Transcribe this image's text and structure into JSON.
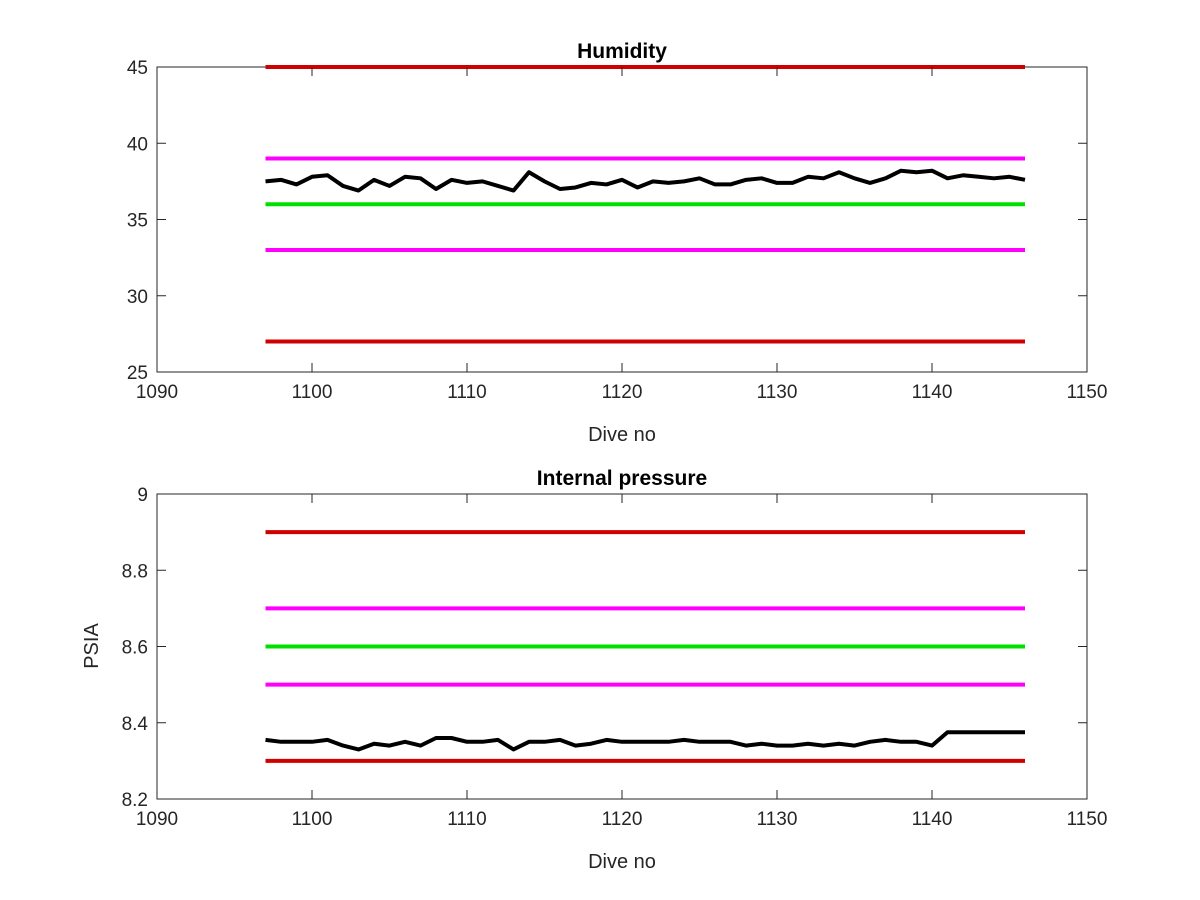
{
  "chart_data": [
    {
      "type": "line",
      "title": "Humidity",
      "xlabel": "Dive no",
      "ylabel": "",
      "xlim": [
        1090,
        1150
      ],
      "ylim": [
        25,
        45
      ],
      "xticks": [
        "1090",
        "1100",
        "1110",
        "1120",
        "1130",
        "1140",
        "1150"
      ],
      "yticks": [
        "25",
        "30",
        "35",
        "40",
        "45"
      ],
      "grid": false,
      "series": [
        {
          "color": "#d00000",
          "kind": "limit",
          "x": [
            1097,
            1146
          ],
          "y": [
            45,
            45
          ]
        },
        {
          "color": "#ff00ff",
          "kind": "limit",
          "x": [
            1097,
            1146
          ],
          "y": [
            39,
            39
          ]
        },
        {
          "color": "#00e000",
          "kind": "limit",
          "x": [
            1097,
            1146
          ],
          "y": [
            36,
            36
          ]
        },
        {
          "color": "#ff00ff",
          "kind": "limit",
          "x": [
            1097,
            1146
          ],
          "y": [
            33,
            33
          ]
        },
        {
          "color": "#d00000",
          "kind": "limit",
          "x": [
            1097,
            1146
          ],
          "y": [
            27,
            27
          ]
        },
        {
          "color": "#000000",
          "kind": "data",
          "x": [
            1097,
            1098,
            1099,
            1100,
            1101,
            1102,
            1103,
            1104,
            1105,
            1106,
            1107,
            1108,
            1109,
            1110,
            1111,
            1112,
            1113,
            1114,
            1115,
            1116,
            1117,
            1118,
            1119,
            1120,
            1121,
            1122,
            1123,
            1124,
            1125,
            1126,
            1127,
            1128,
            1129,
            1130,
            1131,
            1132,
            1133,
            1134,
            1135,
            1136,
            1137,
            1138,
            1139,
            1140,
            1141,
            1142,
            1143,
            1144,
            1145,
            1146
          ],
          "y": [
            37.5,
            37.6,
            37.3,
            37.8,
            37.9,
            37.2,
            36.9,
            37.6,
            37.2,
            37.8,
            37.7,
            37.0,
            37.6,
            37.4,
            37.5,
            37.2,
            36.9,
            38.1,
            37.5,
            37.0,
            37.1,
            37.4,
            37.3,
            37.6,
            37.1,
            37.5,
            37.4,
            37.5,
            37.7,
            37.3,
            37.3,
            37.6,
            37.7,
            37.4,
            37.4,
            37.8,
            37.7,
            38.1,
            37.7,
            37.4,
            37.7,
            38.2,
            38.1,
            38.2,
            37.7,
            37.9,
            37.8,
            37.7,
            37.8,
            37.6
          ]
        }
      ]
    },
    {
      "type": "line",
      "title": "Internal pressure",
      "xlabel": "Dive no",
      "ylabel": "PSIA",
      "xlim": [
        1090,
        1150
      ],
      "ylim": [
        8.2,
        9
      ],
      "xticks": [
        "1090",
        "1100",
        "1110",
        "1120",
        "1130",
        "1140",
        "1150"
      ],
      "yticks": [
        "8.2",
        "8.4",
        "8.6",
        "8.8",
        "9"
      ],
      "grid": false,
      "series": [
        {
          "color": "#d00000",
          "kind": "limit",
          "x": [
            1097,
            1146
          ],
          "y": [
            8.9,
            8.9
          ]
        },
        {
          "color": "#ff00ff",
          "kind": "limit",
          "x": [
            1097,
            1146
          ],
          "y": [
            8.7,
            8.7
          ]
        },
        {
          "color": "#00e000",
          "kind": "limit",
          "x": [
            1097,
            1146
          ],
          "y": [
            8.6,
            8.6
          ]
        },
        {
          "color": "#ff00ff",
          "kind": "limit",
          "x": [
            1097,
            1146
          ],
          "y": [
            8.5,
            8.5
          ]
        },
        {
          "color": "#d00000",
          "kind": "limit",
          "x": [
            1097,
            1146
          ],
          "y": [
            8.3,
            8.3
          ]
        },
        {
          "color": "#000000",
          "kind": "data",
          "x": [
            1097,
            1098,
            1099,
            1100,
            1101,
            1102,
            1103,
            1104,
            1105,
            1106,
            1107,
            1108,
            1109,
            1110,
            1111,
            1112,
            1113,
            1114,
            1115,
            1116,
            1117,
            1118,
            1119,
            1120,
            1121,
            1122,
            1123,
            1124,
            1125,
            1126,
            1127,
            1128,
            1129,
            1130,
            1131,
            1132,
            1133,
            1134,
            1135,
            1136,
            1137,
            1138,
            1139,
            1140,
            1141,
            1142,
            1143,
            1144,
            1145,
            1146
          ],
          "y": [
            8.355,
            8.35,
            8.35,
            8.35,
            8.355,
            8.34,
            8.33,
            8.345,
            8.34,
            8.35,
            8.34,
            8.36,
            8.36,
            8.35,
            8.35,
            8.355,
            8.33,
            8.35,
            8.35,
            8.355,
            8.34,
            8.345,
            8.355,
            8.35,
            8.35,
            8.35,
            8.35,
            8.355,
            8.35,
            8.35,
            8.35,
            8.34,
            8.345,
            8.34,
            8.34,
            8.345,
            8.34,
            8.345,
            8.34,
            8.35,
            8.355,
            8.35,
            8.35,
            8.34,
            8.375,
            8.375,
            8.375,
            8.375,
            8.375,
            8.375
          ]
        }
      ]
    }
  ]
}
